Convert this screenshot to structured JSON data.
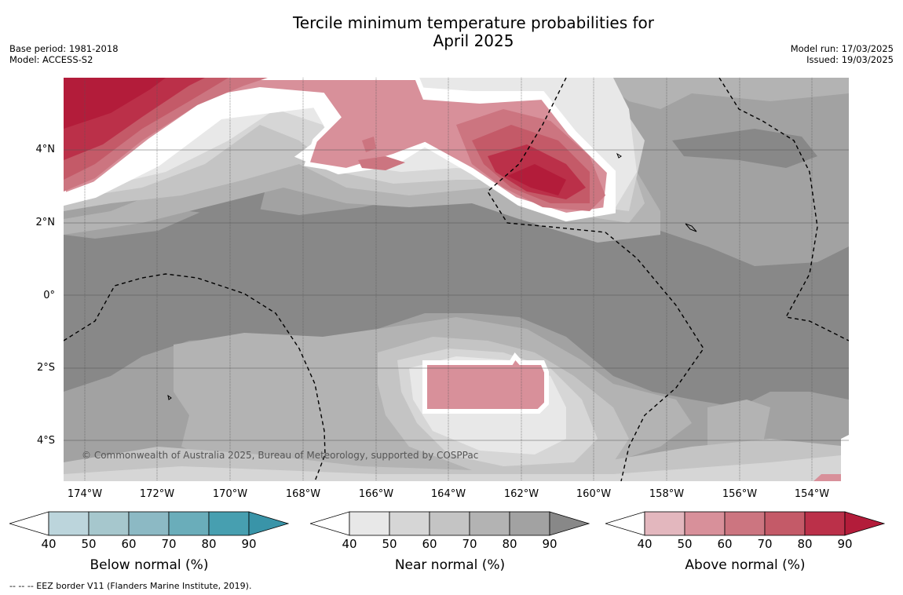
{
  "title_line1": "Tercile minimum temperature probabilities for",
  "title_line2": "April 2025",
  "meta_left": [
    "Base period: 1981-2018",
    "Model: ACCESS-S2"
  ],
  "meta_right": [
    "Model run: 17/03/2025",
    "Issued: 19/03/2025"
  ],
  "latitude_labels": [
    "4°N",
    "2°N",
    "0°",
    "2°S",
    "4°S"
  ],
  "longitude_labels": [
    "174°W",
    "172°W",
    "170°W",
    "168°W",
    "166°W",
    "164°W",
    "162°W",
    "160°W",
    "158°W",
    "156°W",
    "154°W"
  ],
  "copyright": "© Commonwealth of Australia 2025, Bureau of Meteorology, supported by COSPPac",
  "colorbars": [
    {
      "label": "Below normal (%)",
      "ticks": [
        "40",
        "50",
        "60",
        "70",
        "80",
        "90"
      ],
      "colors": [
        "#bcd5dc",
        "#a6c7cd",
        "#8cb9c4",
        "#6aadba",
        "#479fb0",
        "#3994a8"
      ]
    },
    {
      "label": "Near normal (%)",
      "ticks": [
        "40",
        "50",
        "60",
        "70",
        "80",
        "90"
      ],
      "colors": [
        "#e8e8e8",
        "#d6d6d6",
        "#c4c4c4",
        "#b3b3b3",
        "#a2a2a2",
        "#888888"
      ]
    },
    {
      "label": "Above normal (%)",
      "ticks": [
        "40",
        "50",
        "60",
        "70",
        "80",
        "90"
      ],
      "colors": [
        "#e3b7be",
        "#d8909a",
        "#cc7580",
        "#c45a68",
        "#bb3049",
        "#b31c3a"
      ]
    }
  ],
  "footnote": "-- -- -- EEZ border V11 (Flanders Marine Institute, 2019)."
}
